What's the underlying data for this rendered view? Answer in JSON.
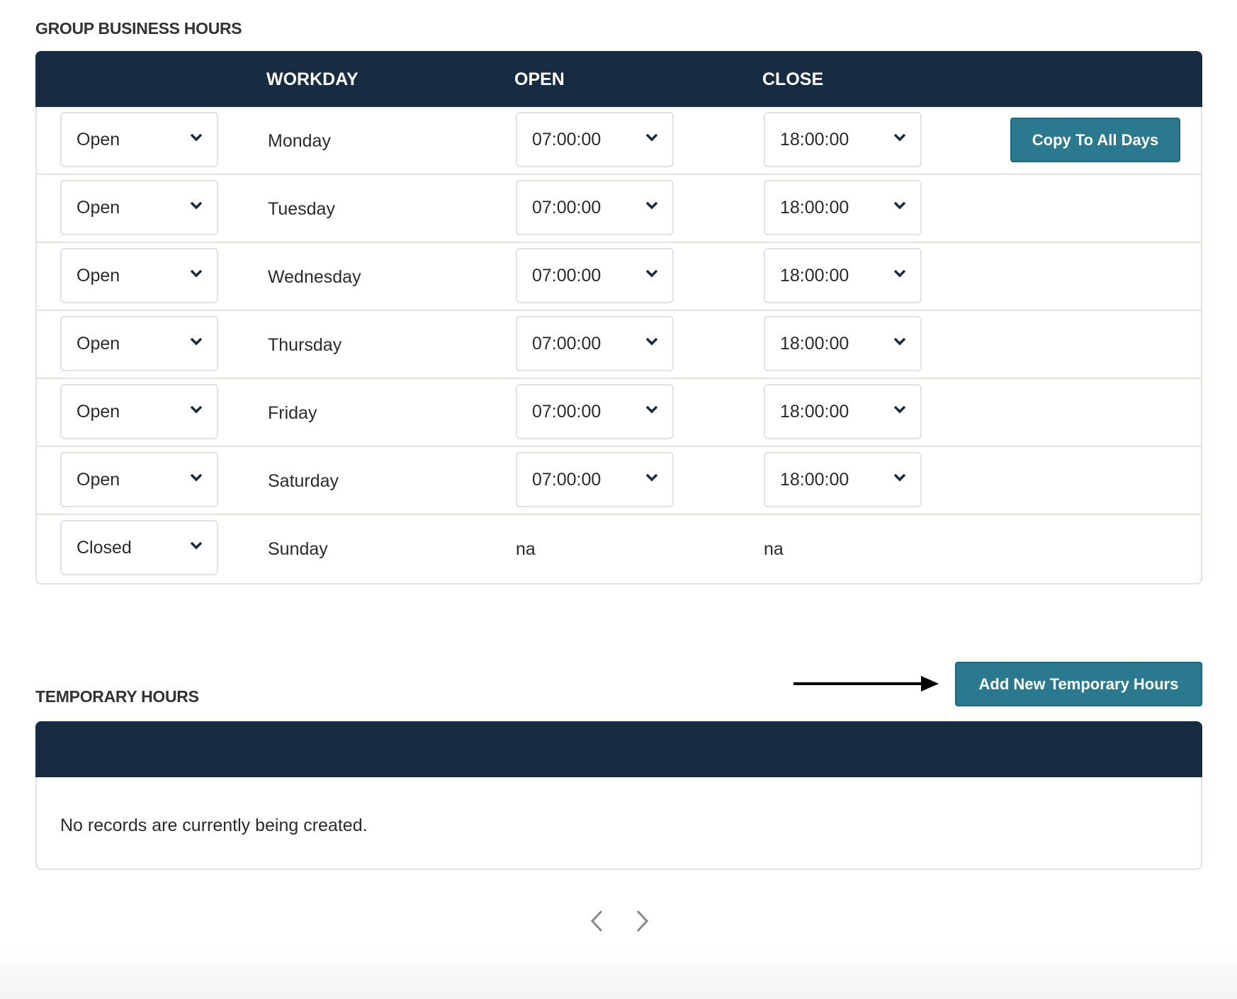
{
  "business_hours": {
    "title": "GROUP BUSINESS HOURS",
    "columns": {
      "workday": "WORKDAY",
      "open": "OPEN",
      "close": "CLOSE"
    },
    "copy_button": "Copy To All Days",
    "rows": [
      {
        "status": "Open",
        "day": "Monday",
        "open": "07:00:00",
        "close": "18:00:00"
      },
      {
        "status": "Open",
        "day": "Tuesday",
        "open": "07:00:00",
        "close": "18:00:00"
      },
      {
        "status": "Open",
        "day": "Wednesday",
        "open": "07:00:00",
        "close": "18:00:00"
      },
      {
        "status": "Open",
        "day": "Thursday",
        "open": "07:00:00",
        "close": "18:00:00"
      },
      {
        "status": "Open",
        "day": "Friday",
        "open": "07:00:00",
        "close": "18:00:00"
      },
      {
        "status": "Open",
        "day": "Saturday",
        "open": "07:00:00",
        "close": "18:00:00"
      },
      {
        "status": "Closed",
        "day": "Sunday",
        "open": "na",
        "close": "na"
      }
    ]
  },
  "temporary_hours": {
    "title": "TEMPORARY HOURS",
    "add_button": "Add New Temporary Hours",
    "empty_message": "No records are currently being created."
  },
  "colors": {
    "header": "#172c42",
    "button": "#2a798f"
  }
}
